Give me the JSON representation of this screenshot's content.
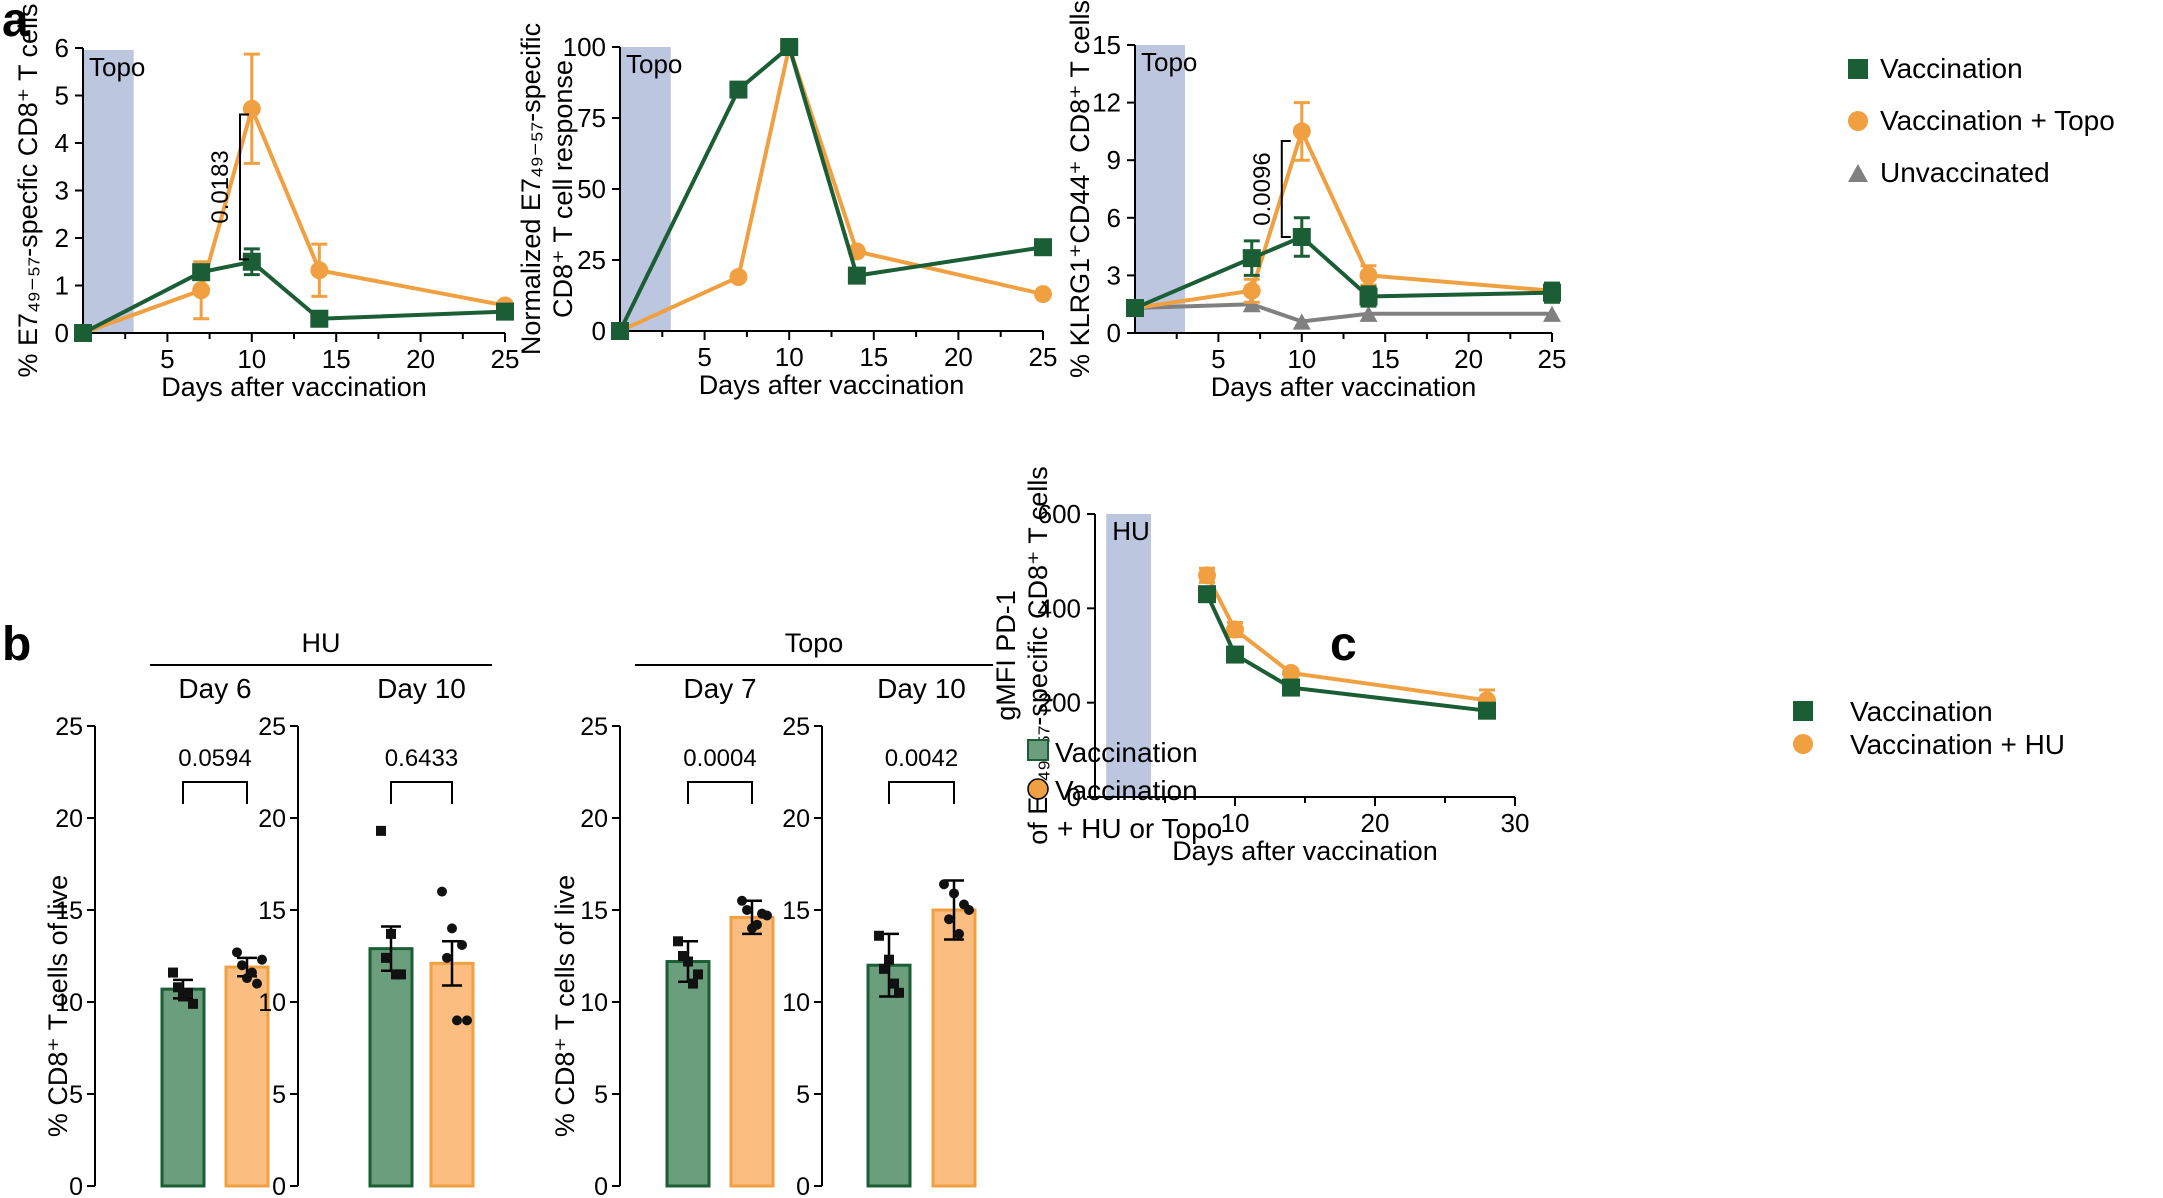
{
  "colors": {
    "vaccination": "#1b5e35",
    "topo": "#f0a040",
    "unvaccinated": "#808080",
    "shade": "#bcc6de",
    "bar_green": "#6b9e7d",
    "bar_orange": "#fbbd80"
  },
  "panel_labels": {
    "a": "a",
    "b": "b",
    "c": "c"
  },
  "chart_data": [
    {
      "id": "a1",
      "type": "line",
      "xlabel": "Days after vaccination",
      "ylabel": "% E7₄₉₋₅₇-specfic CD8⁺ T cells",
      "xlim": [
        0,
        25
      ],
      "ylim": [
        0,
        6
      ],
      "xticks": [
        5,
        10,
        15,
        20,
        25
      ],
      "yticks": [
        0,
        1,
        2,
        3,
        4,
        5,
        6
      ],
      "shade": {
        "x": [
          0,
          3
        ],
        "label": "Topo"
      },
      "series": [
        {
          "name": "Vaccination + Topo",
          "color_key": "topo",
          "marker": "circle",
          "x": [
            0,
            7,
            10,
            14,
            25
          ],
          "y": [
            0,
            0.9,
            4.72,
            1.32,
            0.58
          ],
          "err": [
            0,
            0.6,
            1.15,
            0.55,
            0
          ]
        },
        {
          "name": "Vaccination",
          "color_key": "vaccination",
          "marker": "square",
          "x": [
            0,
            7,
            10,
            14,
            25
          ],
          "y": [
            0,
            1.28,
            1.5,
            0.3,
            0.45
          ],
          "err": [
            0,
            0.15,
            0.27,
            0,
            0
          ]
        }
      ],
      "annotation": {
        "text": "0.0183",
        "x": 9.3,
        "y_low": 1.55,
        "y_high": 4.6
      }
    },
    {
      "id": "a2",
      "type": "line",
      "xlabel": "Days after vaccination",
      "ylabel_line1": "Normalized E7₄₉₋₅₇-specific",
      "ylabel_line2": "CD8⁺ T cell response",
      "xlim": [
        0,
        25
      ],
      "ylim": [
        0,
        100
      ],
      "xticks": [
        5,
        10,
        15,
        20,
        25
      ],
      "yticks": [
        0,
        25,
        50,
        75,
        100
      ],
      "shade": {
        "x": [
          0,
          3
        ],
        "label": "Topo"
      },
      "series": [
        {
          "name": "Vaccination + Topo",
          "color_key": "topo",
          "marker": "circle",
          "x": [
            0,
            7,
            10,
            14,
            25
          ],
          "y": [
            0,
            19,
            100,
            28,
            13
          ],
          "err": [
            0,
            0,
            0,
            0,
            0
          ]
        },
        {
          "name": "Vaccination",
          "color_key": "vaccination",
          "marker": "square",
          "x": [
            0,
            7,
            10,
            14,
            25
          ],
          "y": [
            0,
            85,
            100,
            19.5,
            29.5
          ],
          "err": [
            0,
            0,
            0,
            0,
            0
          ]
        }
      ]
    },
    {
      "id": "a3",
      "type": "line",
      "xlabel": "Days after vaccination",
      "ylabel": "% KLRG1⁺CD44⁺ CD8⁺ T cells",
      "xlim": [
        0,
        25
      ],
      "ylim": [
        0,
        15
      ],
      "xticks": [
        5,
        10,
        15,
        20,
        25
      ],
      "yticks": [
        0,
        3,
        6,
        9,
        12,
        15
      ],
      "shade": {
        "x": [
          0,
          3
        ],
        "label": "Topo"
      },
      "series": [
        {
          "name": "Unvaccinated",
          "color_key": "unvaccinated",
          "marker": "triangle",
          "x": [
            0,
            7,
            10,
            14,
            25
          ],
          "y": [
            1.3,
            1.5,
            0.6,
            1.0,
            1.0
          ],
          "err": [
            0,
            0,
            0,
            0,
            0
          ]
        },
        {
          "name": "Vaccination + Topo",
          "color_key": "topo",
          "marker": "circle",
          "x": [
            0,
            7,
            10,
            14,
            25
          ],
          "y": [
            1.3,
            2.2,
            10.5,
            3.0,
            2.2
          ],
          "err": [
            0,
            0.6,
            1.5,
            0.5,
            0
          ]
        },
        {
          "name": "Vaccination",
          "color_key": "vaccination",
          "marker": "square",
          "x": [
            0,
            7,
            10,
            14,
            25
          ],
          "y": [
            1.3,
            3.9,
            5.0,
            1.9,
            2.1
          ],
          "err": [
            0,
            0.9,
            1.0,
            0.5,
            0.5
          ]
        }
      ],
      "annotation": {
        "text": "0.0096",
        "x": 8.8,
        "y_low": 5.0,
        "y_high": 10.0
      },
      "legend": {
        "position": "top-right",
        "items": [
          {
            "label": "Vaccination",
            "color_key": "vaccination",
            "marker": "square"
          },
          {
            "label": "Vaccination + Topo",
            "color_key": "topo",
            "marker": "circle"
          },
          {
            "label": "Unvaccinated",
            "color_key": "unvaccinated",
            "marker": "triangle"
          }
        ]
      }
    },
    {
      "id": "b",
      "type": "bar",
      "ylabel": "% CD8⁺ T cells of live",
      "ylim": [
        0,
        25
      ],
      "yticks": [
        0,
        5,
        10,
        15,
        20,
        25
      ],
      "treatments": [
        {
          "label": "HU",
          "days": [
            "Day 6",
            "Day 10"
          ]
        },
        {
          "label": "Topo",
          "days": [
            "Day 7",
            "Day 10"
          ]
        }
      ],
      "subplots": [
        {
          "title": "Day 6",
          "p": "0.0594",
          "bars": [
            {
              "value": 10.7,
              "err": 0.5
            },
            {
              "value": 11.9,
              "err": 0.5
            }
          ],
          "points": [
            [
              11.6,
              10.3,
              9.9,
              10.8,
              10.5
            ],
            [
              12.7,
              11.3,
              11.0,
              12.0,
              11.6,
              12.3
            ]
          ]
        },
        {
          "title": "Day 10",
          "p": "0.6433",
          "bars": [
            {
              "value": 12.9,
              "err": 1.2
            },
            {
              "value": 12.1,
              "err": 1.2
            }
          ],
          "points": [
            [
              19.3,
              13.7,
              11.5,
              12.4,
              11.5
            ],
            [
              16.0,
              14.0,
              13.1,
              12.4,
              9.0,
              9.0
            ]
          ]
        },
        {
          "title": "Day 7",
          "p": "0.0004",
          "bars": [
            {
              "value": 12.2,
              "err": 1.1
            },
            {
              "value": 14.6,
              "err": 0.9
            }
          ],
          "points": [
            [
              13.3,
              12.2,
              11.5,
              12.5,
              11.0
            ],
            [
              15.5,
              14.0,
              14.8,
              15.0,
              14.2,
              14.7
            ]
          ]
        },
        {
          "title": "Day 10",
          "p": "0.0042",
          "bars": [
            {
              "value": 12.0,
              "err": 1.7
            },
            {
              "value": 15.0,
              "err": 1.6
            }
          ],
          "points": [
            [
              13.6,
              12.3,
              10.5,
              11.8,
              11.0
            ],
            [
              16.4,
              15.9,
              15.3,
              14.5,
              13.7,
              15.0
            ]
          ]
        }
      ],
      "legend": {
        "items": [
          {
            "label": "Vaccination",
            "color_key": "bar_green"
          },
          {
            "label": "Vaccination",
            "label2": "+ HU or Topo",
            "color_key": "bar_orange"
          }
        ]
      }
    },
    {
      "id": "c",
      "type": "line",
      "xlabel": "Days after vaccination",
      "ylabel_line1": "gMFI PD-1",
      "ylabel_line2": "of E7₄₉₋₅₇-specific CD8⁺ T cells",
      "xlim": [
        0,
        30
      ],
      "ylim": [
        0,
        600
      ],
      "xticks": [
        10,
        20,
        30
      ],
      "yticks": [
        0,
        200,
        400,
        600
      ],
      "shade": {
        "x": [
          0.8,
          4
        ],
        "label": "HU"
      },
      "series": [
        {
          "name": "Vaccination + HU",
          "color_key": "topo",
          "marker": "circle",
          "x": [
            8,
            10,
            14,
            28
          ],
          "y": [
            470,
            355,
            263,
            205
          ],
          "err": [
            15,
            15,
            0,
            22
          ]
        },
        {
          "name": "Vaccination",
          "color_key": "vaccination",
          "marker": "square",
          "x": [
            8,
            10,
            14,
            28
          ],
          "y": [
            430,
            302,
            232,
            183
          ],
          "err": [
            15,
            0,
            0,
            0
          ]
        }
      ],
      "legend": {
        "items": [
          {
            "label": "Vaccination",
            "color_key": "vaccination",
            "marker": "square"
          },
          {
            "label": "Vaccination + HU",
            "color_key": "topo",
            "marker": "circle"
          }
        ]
      }
    }
  ]
}
